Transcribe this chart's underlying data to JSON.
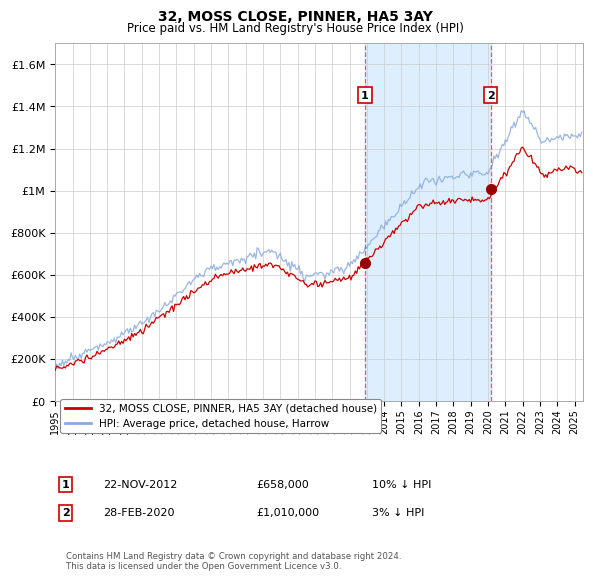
{
  "title": "32, MOSS CLOSE, PINNER, HA5 3AY",
  "subtitle": "Price paid vs. HM Land Registry's House Price Index (HPI)",
  "ylim": [
    0,
    1700000
  ],
  "xlim_start": 1995.0,
  "xlim_end": 2025.5,
  "hpi_color": "#88aadd",
  "price_color": "#cc0000",
  "marker_color": "#990000",
  "vline_color": "#ff5555",
  "shade_color": "#ddeeff",
  "grid_color": "#cccccc",
  "bg_color": "#ffffff",
  "purchase1_date": 2012.896,
  "purchase1_price": 658000,
  "purchase1_label": "1",
  "purchase2_date": 2020.162,
  "purchase2_price": 1010000,
  "purchase2_label": "2",
  "legend_entry1": "32, MOSS CLOSE, PINNER, HA5 3AY (detached house)",
  "legend_entry2": "HPI: Average price, detached house, Harrow",
  "annotation1_date": "22-NOV-2012",
  "annotation1_price": "£658,000",
  "annotation1_hpi": "10% ↓ HPI",
  "annotation2_date": "28-FEB-2020",
  "annotation2_price": "£1,010,000",
  "annotation2_hpi": "3% ↓ HPI",
  "footnote": "Contains HM Land Registry data © Crown copyright and database right 2024.\nThis data is licensed under the Open Government Licence v3.0.",
  "yticks": [
    0,
    200000,
    400000,
    600000,
    800000,
    1000000,
    1200000,
    1400000,
    1600000
  ],
  "ytick_labels": [
    "£0",
    "£200K",
    "£400K",
    "£600K",
    "£800K",
    "£1M",
    "£1.2M",
    "£1.4M",
    "£1.6M"
  ]
}
